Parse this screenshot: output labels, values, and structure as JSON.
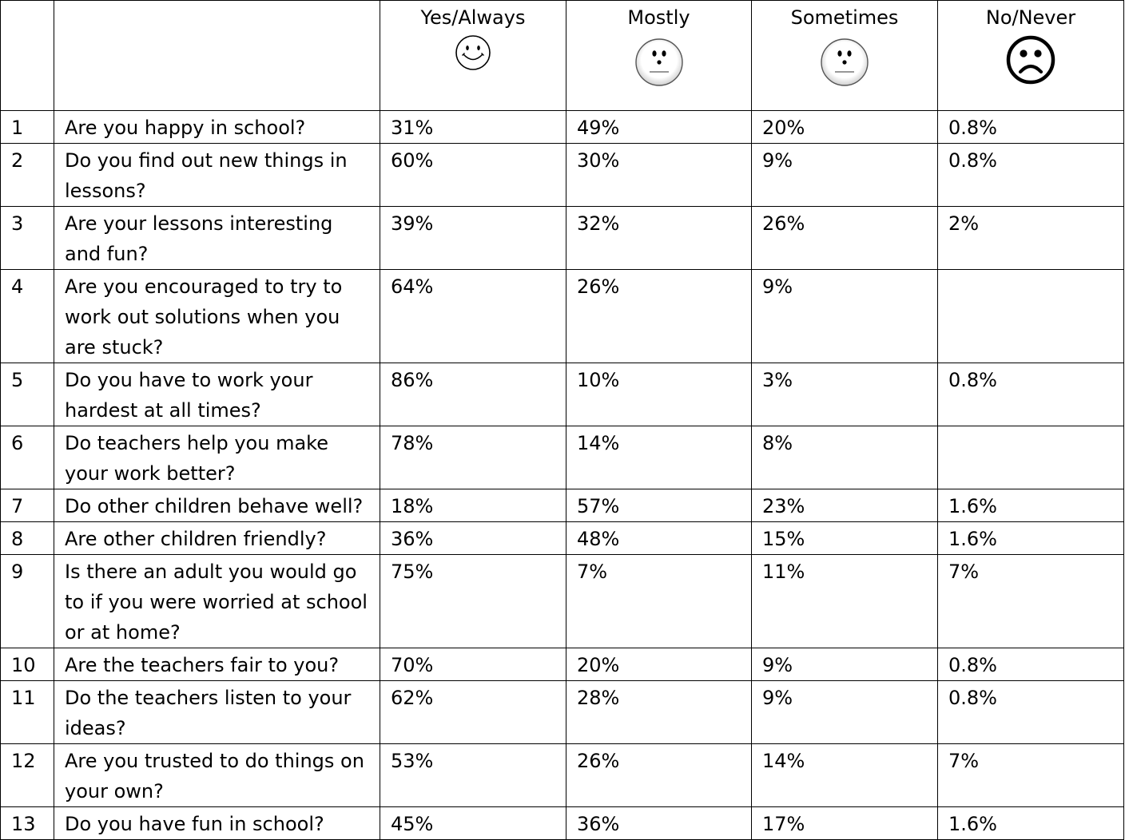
{
  "columns": [
    {
      "label": "Yes/Always",
      "icon": "smiley-face-icon"
    },
    {
      "label": "Mostly",
      "icon": "neutral-face-icon"
    },
    {
      "label": "Sometimes",
      "icon": "neutral-face-icon"
    },
    {
      "label": "No/Never",
      "icon": "frowning-face-icon"
    }
  ],
  "rows": [
    {
      "num": "1",
      "question": "Are you happy in school?",
      "values": [
        "31%",
        "49%",
        "20%",
        "0.8%"
      ]
    },
    {
      "num": "2",
      "question": "Do you find out new things in lessons?",
      "values": [
        "60%",
        "30%",
        "9%",
        "0.8%"
      ]
    },
    {
      "num": "3",
      "question": "Are your lessons interesting and fun?",
      "values": [
        "39%",
        "32%",
        "26%",
        "2%"
      ]
    },
    {
      "num": "4",
      "question": "Are you encouraged to try to work out solutions when you are stuck?",
      "values": [
        "64%",
        "26%",
        "9%",
        ""
      ]
    },
    {
      "num": "5",
      "question": "Do you have to work your hardest at all times?",
      "values": [
        "86%",
        "10%",
        "3%",
        "0.8%"
      ]
    },
    {
      "num": "6",
      "question": "Do teachers help you make your work better?",
      "values": [
        "78%",
        "14%",
        "8%",
        ""
      ]
    },
    {
      "num": "7",
      "question": "Do other children behave well?",
      "values": [
        "18%",
        "57%",
        "23%",
        "1.6%"
      ]
    },
    {
      "num": "8",
      "question": "Are other children friendly?",
      "values": [
        "36%",
        "48%",
        "15%",
        "1.6%"
      ]
    },
    {
      "num": "9",
      "question": "Is there an adult you would go to if you were worried at school or at home?",
      "values": [
        "75%",
        "7%",
        "11%",
        "7%"
      ]
    },
    {
      "num": "10",
      "question": "Are the teachers fair to you?",
      "values": [
        "70%",
        "20%",
        "9%",
        "0.8%"
      ]
    },
    {
      "num": "11",
      "question": "Do the teachers listen to your ideas?",
      "values": [
        "62%",
        "28%",
        "9%",
        "0.8%"
      ]
    },
    {
      "num": "12",
      "question": "Are you trusted to do things on your own?",
      "values": [
        "53%",
        "26%",
        "14%",
        "7%"
      ]
    },
    {
      "num": "13",
      "question": "Do you have fun in school?",
      "values": [
        "45%",
        "36%",
        "17%",
        "1.6%"
      ]
    }
  ]
}
